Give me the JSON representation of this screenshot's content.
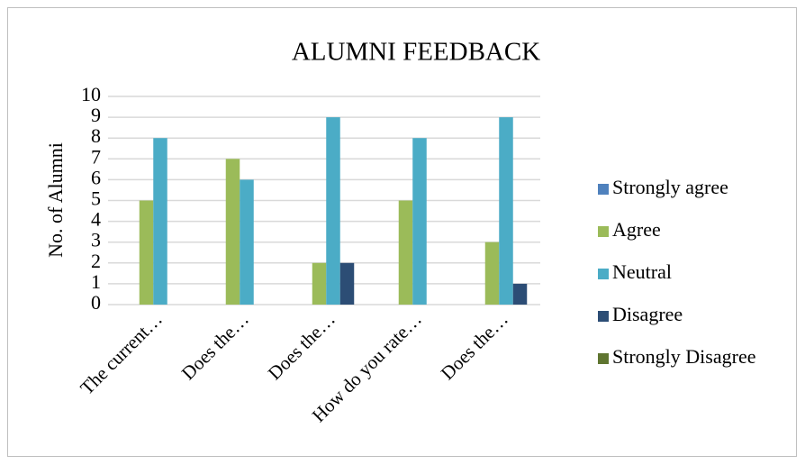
{
  "chart_data": {
    "type": "bar",
    "title": "ALUMNI FEEDBACK",
    "y_label": "No. of Alumni",
    "categories": [
      "The current…",
      "Does the…",
      "Does the…",
      "How do you rate…",
      "Does the…"
    ],
    "series": [
      {
        "name": "Strongly agree",
        "color": "#4f81bd",
        "values": [
          0,
          0,
          0,
          0,
          0
        ]
      },
      {
        "name": "Agree",
        "color": "#9bbb59",
        "values": [
          5,
          7,
          2,
          5,
          3
        ]
      },
      {
        "name": "Neutral",
        "color": "#4bacc6",
        "values": [
          8,
          6,
          9,
          8,
          9
        ]
      },
      {
        "name": "Disagree",
        "color": "#2c4d75",
        "values": [
          0,
          0,
          2,
          0,
          1
        ]
      },
      {
        "name": "Strongly Disagree",
        "color": "#5f7530",
        "values": [
          0,
          0,
          0,
          0,
          0
        ]
      }
    ],
    "ylim": [
      0,
      10
    ],
    "yticks": [
      0,
      1,
      2,
      3,
      4,
      5,
      6,
      7,
      8,
      9,
      10
    ],
    "grid": true,
    "legend": "right"
  }
}
